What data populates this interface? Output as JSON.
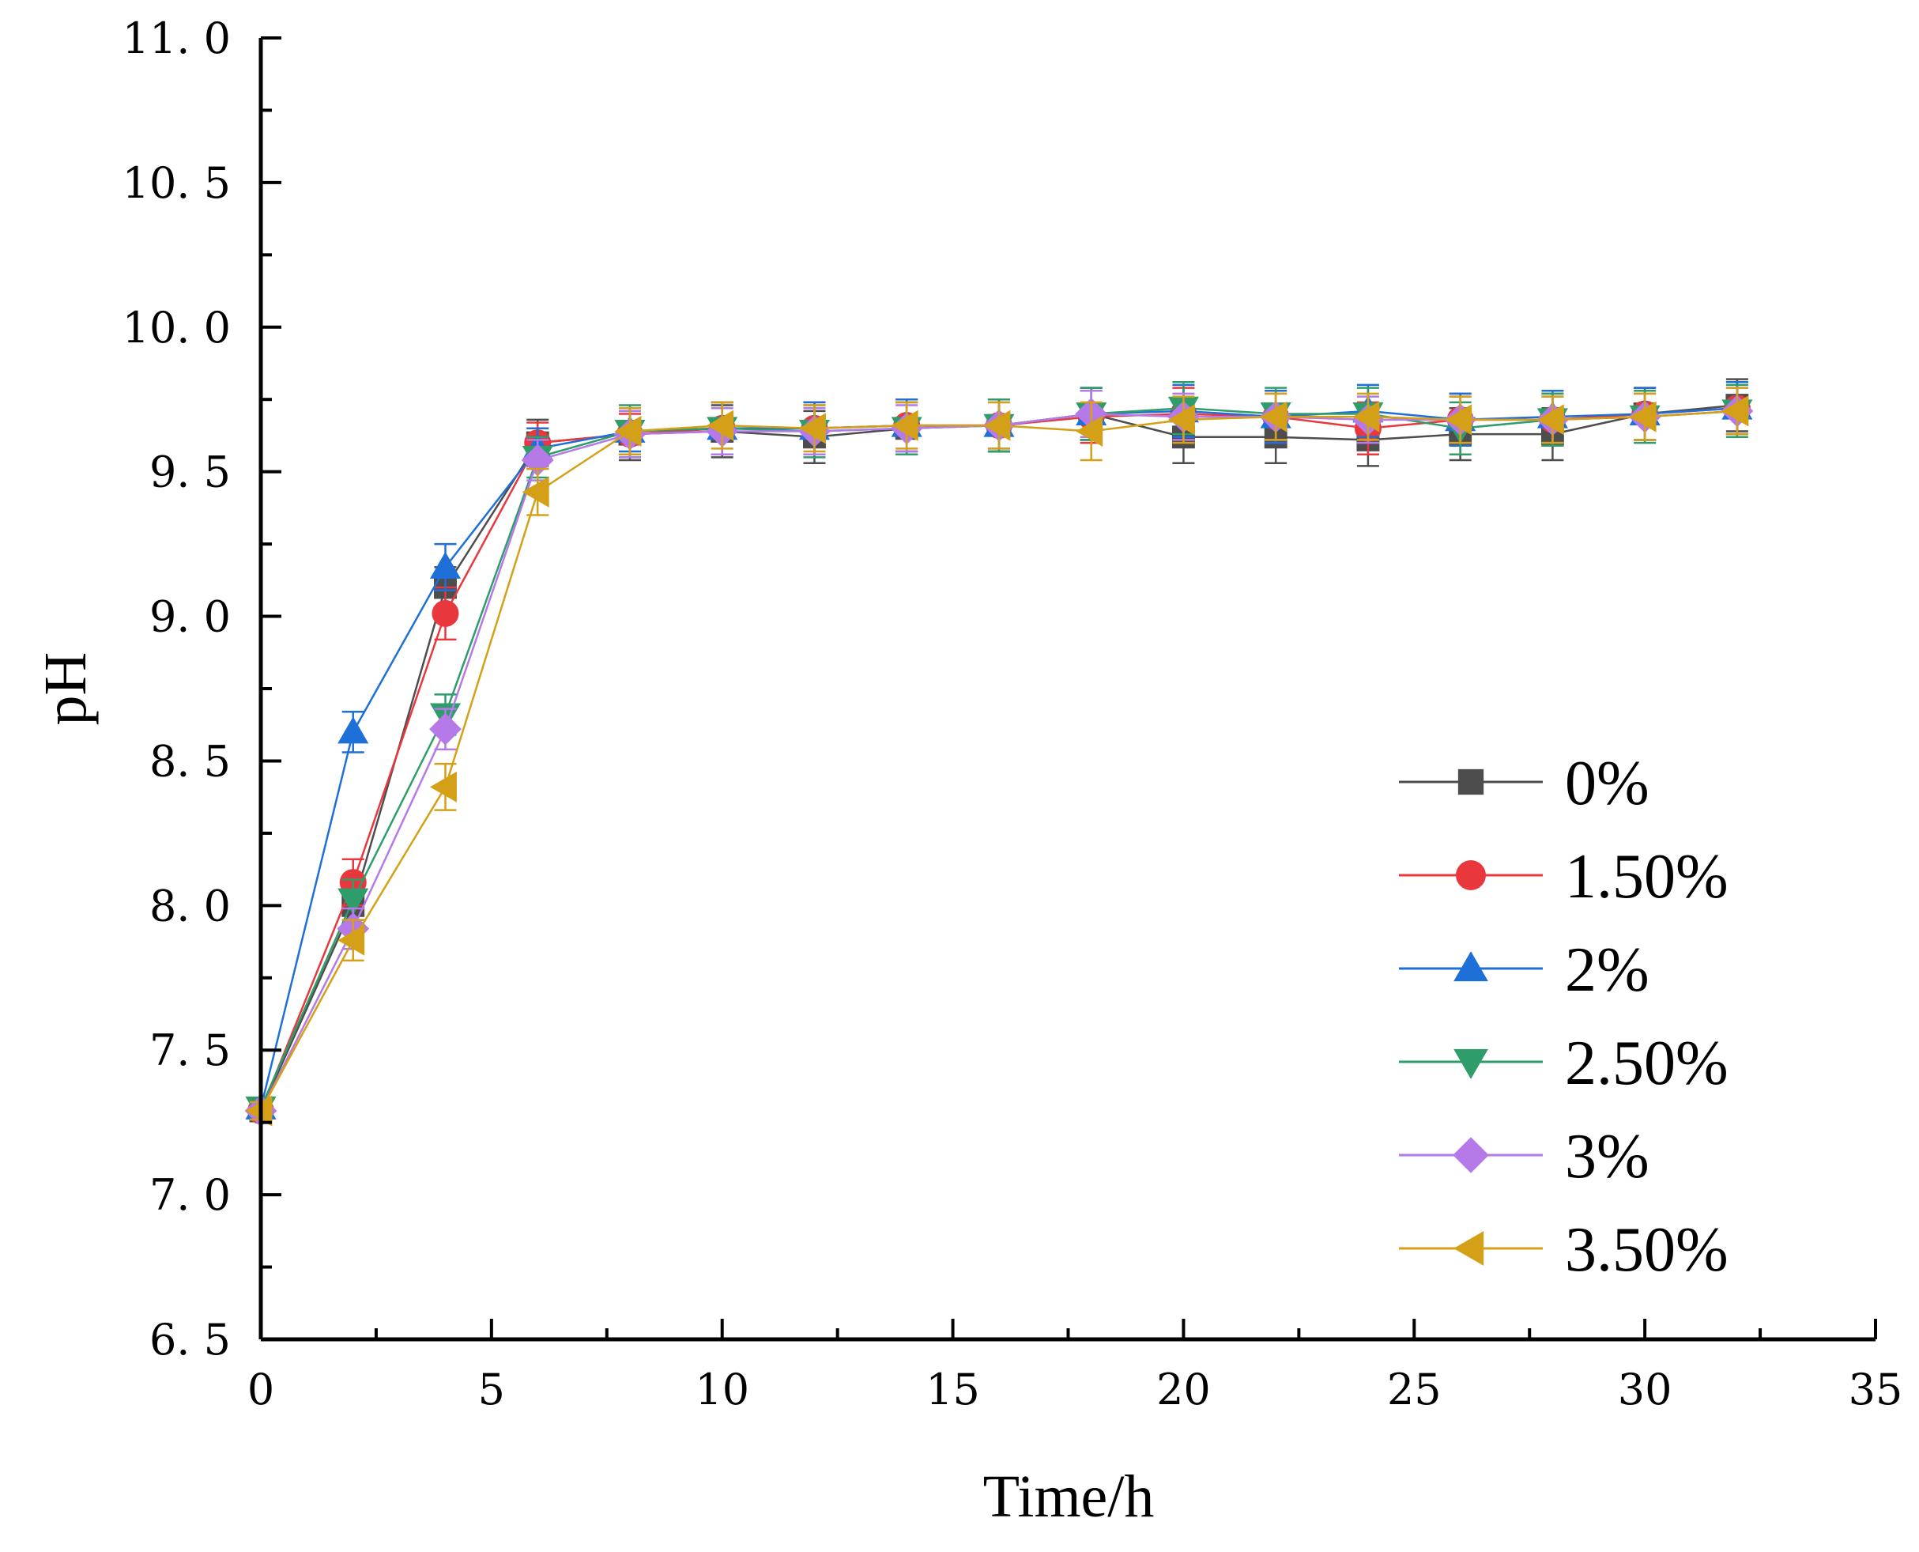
{
  "chart_data": {
    "type": "line",
    "title": "",
    "xlabel": "Time/h",
    "ylabel": "pH",
    "xlim": [
      0,
      35
    ],
    "ylim": [
      6.5,
      11.0
    ],
    "x_ticks": [
      0,
      5,
      10,
      15,
      20,
      25,
      30,
      35
    ],
    "x_tick_labels": [
      "0",
      "5",
      "10",
      "15",
      "20",
      "25",
      "30",
      "35"
    ],
    "y_ticks": [
      6.5,
      7.0,
      7.5,
      8.0,
      8.5,
      9.0,
      9.5,
      10.0,
      10.5,
      11.0
    ],
    "y_tick_labels": [
      "6. 5",
      "7. 0",
      "7. 5",
      "8. 0",
      "8. 5",
      "9. 0",
      "9. 5",
      "10. 0",
      "10. 5",
      "11. 0"
    ],
    "grid": false,
    "legend_position": "right",
    "x": [
      0,
      2,
      4,
      6,
      8,
      10,
      12,
      14,
      16,
      18,
      20,
      22,
      24,
      26,
      28,
      30,
      32
    ],
    "series": [
      {
        "name": "0%",
        "color": "#4d4d4d",
        "marker": "square",
        "values": [
          7.29,
          8.0,
          9.1,
          9.6,
          9.63,
          9.64,
          9.62,
          9.65,
          9.66,
          9.7,
          9.62,
          9.62,
          9.61,
          9.63,
          9.63,
          9.7,
          9.73
        ],
        "errors": [
          0.03,
          0.06,
          0.07,
          0.08,
          0.09,
          0.09,
          0.09,
          0.09,
          0.09,
          0.09,
          0.09,
          0.09,
          0.09,
          0.09,
          0.09,
          0.09,
          0.09
        ]
      },
      {
        "name": "1.50%",
        "color": "#e8383d",
        "marker": "circle",
        "values": [
          7.29,
          8.08,
          9.01,
          9.6,
          9.63,
          9.65,
          9.65,
          9.66,
          9.66,
          9.69,
          9.7,
          9.69,
          9.65,
          9.68,
          9.68,
          9.7,
          9.72
        ],
        "errors": [
          0.03,
          0.08,
          0.09,
          0.07,
          0.07,
          0.09,
          0.09,
          0.09,
          0.09,
          0.09,
          0.09,
          0.09,
          0.09,
          0.09,
          0.09,
          0.09,
          0.09
        ]
      },
      {
        "name": "2%",
        "color": "#1f6fd8",
        "marker": "triangle-up",
        "values": [
          7.3,
          8.6,
          9.17,
          9.58,
          9.64,
          9.65,
          9.65,
          9.66,
          9.66,
          9.7,
          9.71,
          9.69,
          9.71,
          9.68,
          9.69,
          9.7,
          9.72
        ],
        "errors": [
          0.03,
          0.07,
          0.08,
          0.07,
          0.07,
          0.09,
          0.09,
          0.09,
          0.09,
          0.09,
          0.09,
          0.09,
          0.09,
          0.09,
          0.09,
          0.09,
          0.09
        ]
      },
      {
        "name": "2.50%",
        "color": "#2e9d6a",
        "marker": "triangle-down",
        "values": [
          7.3,
          8.02,
          8.66,
          9.55,
          9.64,
          9.65,
          9.64,
          9.65,
          9.66,
          9.7,
          9.72,
          9.7,
          9.7,
          9.65,
          9.68,
          9.69,
          9.71
        ],
        "errors": [
          0.03,
          0.07,
          0.07,
          0.07,
          0.09,
          0.09,
          0.09,
          0.09,
          0.09,
          0.09,
          0.09,
          0.09,
          0.09,
          0.09,
          0.09,
          0.09,
          0.09
        ]
      },
      {
        "name": "3%",
        "color": "#b57ae8",
        "marker": "diamond",
        "values": [
          7.29,
          7.92,
          8.61,
          9.54,
          9.63,
          9.64,
          9.64,
          9.65,
          9.66,
          9.7,
          9.69,
          9.69,
          9.68,
          9.68,
          9.68,
          9.69,
          9.71
        ],
        "errors": [
          0.03,
          0.07,
          0.07,
          0.07,
          0.08,
          0.08,
          0.08,
          0.08,
          0.08,
          0.08,
          0.08,
          0.08,
          0.08,
          0.08,
          0.08,
          0.08,
          0.08
        ]
      },
      {
        "name": "3.50%",
        "color": "#d4a017",
        "marker": "triangle-left",
        "values": [
          7.29,
          7.88,
          8.41,
          9.43,
          9.64,
          9.66,
          9.65,
          9.66,
          9.66,
          9.64,
          9.68,
          9.69,
          9.69,
          9.68,
          9.68,
          9.69,
          9.71
        ],
        "errors": [
          0.03,
          0.07,
          0.08,
          0.08,
          0.08,
          0.08,
          0.08,
          0.08,
          0.08,
          0.1,
          0.08,
          0.08,
          0.08,
          0.08,
          0.08,
          0.08,
          0.08
        ]
      }
    ]
  }
}
